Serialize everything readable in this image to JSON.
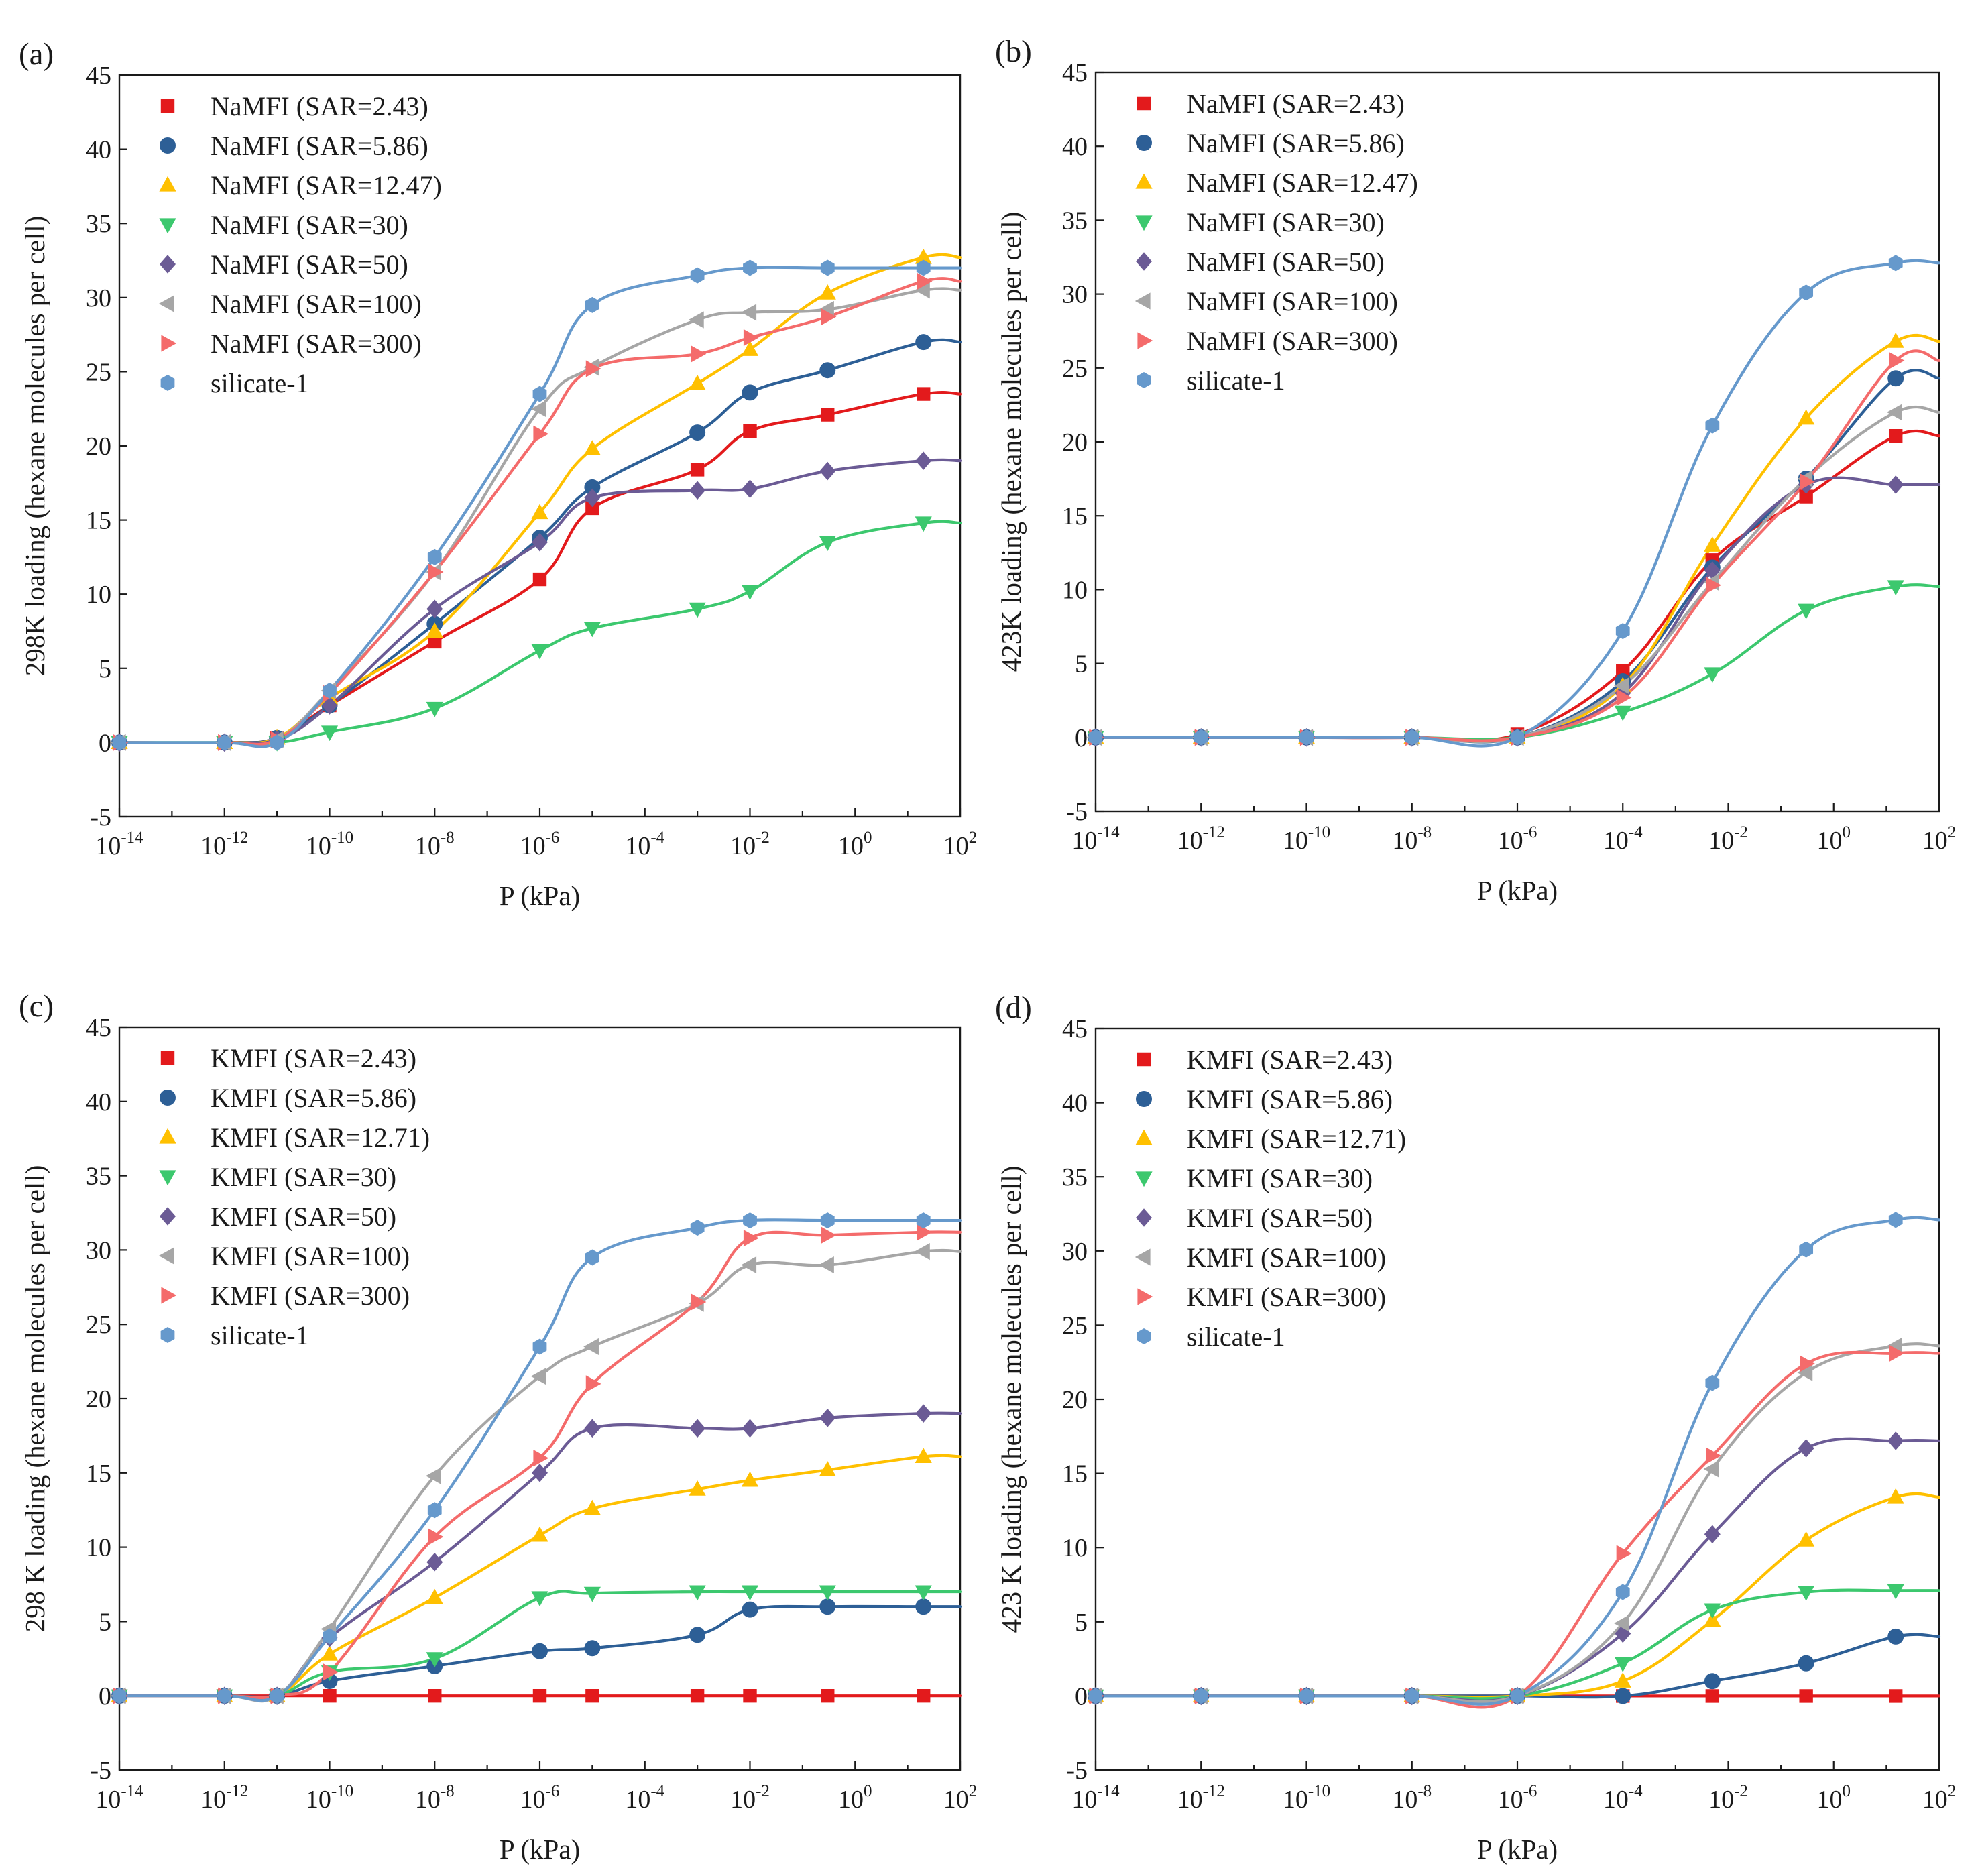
{
  "figure": {
    "x_axis_label": "P (kPa)"
  },
  "chart_data": [
    {
      "type": "scatter",
      "panel_label": "(a)",
      "ylabel": "298K loading (hexane molecules per cell)",
      "xlabel": "P (kPa)",
      "xscale": "log",
      "xlim": [
        1e-14,
        100
      ],
      "ylim": [
        -5,
        45
      ],
      "y_ticks": [
        -5,
        0,
        5,
        10,
        15,
        20,
        25,
        30,
        35,
        40,
        45
      ],
      "x_tick_exponents": [
        "-14",
        "-12",
        "-10",
        "-8",
        "-6",
        "-4",
        "-2",
        "0",
        "2"
      ],
      "x_tick_base": "10",
      "legend_position": "top-left",
      "fit_curves": true,
      "x": [
        1e-14,
        1e-12,
        1e-11,
        1e-10,
        1e-08,
        1e-06,
        1e-05,
        0.001,
        0.01,
        0.3,
        20
      ],
      "series": [
        {
          "name": "NaMFI (SAR=2.43)",
          "color": "#e31a1c",
          "marker": "square",
          "y": [
            0,
            0,
            0.3,
            2.5,
            6.8,
            11,
            15.8,
            18.4,
            21,
            22.1,
            23.5
          ]
        },
        {
          "name": "NaMFI (SAR=5.86)",
          "color": "#2d5f96",
          "marker": "circle",
          "y": [
            0,
            0,
            0.3,
            2.5,
            8,
            13.8,
            17.2,
            20.9,
            23.6,
            25.1,
            27
          ]
        },
        {
          "name": "NaMFI (SAR=12.47)",
          "color": "#ffc000",
          "marker": "triangle-up",
          "y": [
            0,
            0,
            0.3,
            3,
            7.5,
            15.5,
            19.8,
            24.2,
            26.5,
            30.3,
            32.7
          ]
        },
        {
          "name": "NaMFI (SAR=30)",
          "color": "#3cc86e",
          "marker": "triangle-down",
          "y": [
            0,
            0,
            0,
            0.7,
            2.3,
            6.2,
            7.7,
            9,
            10.2,
            13.5,
            14.8
          ]
        },
        {
          "name": "NaMFI (SAR=50)",
          "color": "#6b5b95",
          "marker": "diamond",
          "y": [
            0,
            0,
            0.2,
            2.5,
            9,
            13.5,
            16.5,
            17,
            17.1,
            18.3,
            19
          ]
        },
        {
          "name": "NaMFI (SAR=100)",
          "color": "#a6a6a6",
          "marker": "triangle-left",
          "y": [
            0,
            0,
            0.2,
            3.5,
            11.5,
            22.5,
            25.3,
            28.5,
            29,
            29.2,
            30.5
          ]
        },
        {
          "name": "NaMFI (SAR=300)",
          "color": "#f46b6b",
          "marker": "triangle-right",
          "y": [
            0,
            0,
            0.2,
            3.3,
            11.5,
            20.8,
            25.2,
            26.2,
            27.3,
            28.7,
            31.1
          ]
        },
        {
          "name": "silicate-1",
          "color": "#6699cc",
          "marker": "hexagon",
          "y": [
            0,
            0,
            0,
            3.5,
            12.5,
            23.5,
            29.5,
            31.5,
            32,
            32,
            32
          ]
        }
      ]
    },
    {
      "type": "scatter",
      "panel_label": "(b)",
      "ylabel": "423K loading (hexane molecules per cell)",
      "xlabel": "P (kPa)",
      "xscale": "log",
      "xlim": [
        1e-14,
        100
      ],
      "ylim": [
        -5,
        45
      ],
      "y_ticks": [
        -5,
        0,
        5,
        10,
        15,
        20,
        25,
        30,
        35,
        40,
        45
      ],
      "x_tick_exponents": [
        "-14",
        "-12",
        "-10",
        "-8",
        "-6",
        "-4",
        "-2",
        "0",
        "2"
      ],
      "x_tick_base": "10",
      "legend_position": "top-left",
      "fit_curves": true,
      "x": [
        1e-14,
        1e-12,
        1e-10,
        1e-08,
        1e-06,
        0.0001,
        0.005,
        0.3,
        15
      ],
      "series": [
        {
          "name": "NaMFI (SAR=2.43)",
          "color": "#e31a1c",
          "marker": "square",
          "y": [
            0,
            0,
            0,
            0,
            0.2,
            4.5,
            12,
            16.3,
            20.4
          ]
        },
        {
          "name": "NaMFI (SAR=5.86)",
          "color": "#2d5f96",
          "marker": "circle",
          "y": [
            0,
            0,
            0,
            0,
            0,
            3.8,
            11.5,
            17.5,
            24.3
          ]
        },
        {
          "name": "NaMFI (SAR=12.47)",
          "color": "#ffc000",
          "marker": "triangle-up",
          "y": [
            0,
            0,
            0,
            0,
            0,
            3.5,
            13,
            21.6,
            26.8
          ]
        },
        {
          "name": "NaMFI (SAR=30)",
          "color": "#3cc86e",
          "marker": "triangle-down",
          "y": [
            0,
            0,
            0,
            0,
            0,
            1.7,
            4.3,
            8.6,
            10.2
          ]
        },
        {
          "name": "NaMFI (SAR=50)",
          "color": "#6b5b95",
          "marker": "diamond",
          "y": [
            0,
            0,
            0,
            0,
            0,
            3,
            11.3,
            17.1,
            17.1
          ]
        },
        {
          "name": "NaMFI (SAR=100)",
          "color": "#a6a6a6",
          "marker": "triangle-left",
          "y": [
            0,
            0,
            0,
            0,
            0,
            3.5,
            10.5,
            17.5,
            22
          ]
        },
        {
          "name": "NaMFI (SAR=300)",
          "color": "#f46b6b",
          "marker": "triangle-right",
          "y": [
            0,
            0,
            0,
            0,
            0,
            2.7,
            10.3,
            17.3,
            25.5
          ]
        },
        {
          "name": "silicate-1",
          "color": "#6699cc",
          "marker": "hexagon",
          "y": [
            0,
            0,
            0,
            0,
            0,
            7.2,
            21.1,
            30.1,
            32.1
          ]
        }
      ]
    },
    {
      "type": "scatter",
      "panel_label": "(c)",
      "ylabel": "298 K loading (hexane molecules per cell)",
      "xlabel": "P (kPa)",
      "xscale": "log",
      "xlim": [
        1e-14,
        100
      ],
      "ylim": [
        -5,
        45
      ],
      "y_ticks": [
        -5,
        0,
        5,
        10,
        15,
        20,
        25,
        30,
        35,
        40,
        45
      ],
      "x_tick_exponents": [
        "-14",
        "-12",
        "-10",
        "-8",
        "-6",
        "-4",
        "-2",
        "0",
        "2"
      ],
      "x_tick_base": "10",
      "legend_position": "top-left",
      "fit_curves": true,
      "x": [
        1e-14,
        1e-12,
        1e-11,
        1e-10,
        1e-08,
        1e-06,
        1e-05,
        0.001,
        0.01,
        0.3,
        20
      ],
      "series": [
        {
          "name": "KMFI (SAR=2.43)",
          "color": "#e31a1c",
          "marker": "square",
          "y": [
            0,
            0,
            0,
            0,
            0,
            0,
            0,
            0,
            0,
            0,
            0
          ]
        },
        {
          "name": "KMFI (SAR=5.86)",
          "color": "#2d5f96",
          "marker": "circle",
          "y": [
            0,
            0,
            0,
            1,
            2,
            3,
            3.2,
            4.1,
            5.8,
            6,
            6
          ]
        },
        {
          "name": "KMFI (SAR=12.71)",
          "color": "#ffc000",
          "marker": "triangle-up",
          "y": [
            0,
            0,
            0,
            2.8,
            6.6,
            10.8,
            12.6,
            13.9,
            14.5,
            15.2,
            16.1
          ]
        },
        {
          "name": "KMFI (SAR=30)",
          "color": "#3cc86e",
          "marker": "triangle-down",
          "y": [
            0,
            0,
            0,
            1.6,
            2.5,
            6.6,
            6.9,
            7,
            7,
            7,
            7
          ]
        },
        {
          "name": "KMFI (SAR=50)",
          "color": "#6b5b95",
          "marker": "diamond",
          "y": [
            0,
            0,
            0,
            3.9,
            9,
            15,
            18,
            18,
            18,
            18.7,
            19
          ]
        },
        {
          "name": "KMFI (SAR=100)",
          "color": "#a6a6a6",
          "marker": "triangle-left",
          "y": [
            0,
            0,
            0,
            4.5,
            14.8,
            21.5,
            23.5,
            26.4,
            29,
            29,
            29.9
          ]
        },
        {
          "name": "KMFI (SAR=300)",
          "color": "#f46b6b",
          "marker": "triangle-right",
          "y": [
            0,
            0,
            0,
            1.6,
            10.7,
            16,
            21,
            26.5,
            30.8,
            31,
            31.2
          ]
        },
        {
          "name": "silicate-1",
          "color": "#6699cc",
          "marker": "hexagon",
          "y": [
            0,
            0,
            0,
            4,
            12.5,
            23.5,
            29.5,
            31.5,
            32,
            32,
            32
          ]
        }
      ]
    },
    {
      "type": "scatter",
      "panel_label": "(d)",
      "ylabel": "423 K loading (hexane molecules per cell)",
      "xlabel": "P (kPa)",
      "xscale": "log",
      "xlim": [
        1e-14,
        100
      ],
      "ylim": [
        -5,
        45
      ],
      "y_ticks": [
        -5,
        0,
        5,
        10,
        15,
        20,
        25,
        30,
        35,
        40,
        45
      ],
      "x_tick_exponents": [
        "-14",
        "-12",
        "-10",
        "-8",
        "-6",
        "-4",
        "-2",
        "0",
        "2"
      ],
      "x_tick_base": "10",
      "legend_position": "top-left",
      "fit_curves": true,
      "x": [
        1e-14,
        1e-12,
        1e-10,
        1e-08,
        1e-06,
        0.0001,
        0.005,
        0.3,
        15
      ],
      "series": [
        {
          "name": "KMFI (SAR=2.43)",
          "color": "#e31a1c",
          "marker": "square",
          "y": [
            0,
            0,
            0,
            0,
            0,
            0,
            0,
            0,
            0
          ]
        },
        {
          "name": "KMFI (SAR=5.86)",
          "color": "#2d5f96",
          "marker": "circle",
          "y": [
            0,
            0,
            0,
            0,
            0,
            0,
            1,
            2.2,
            4
          ]
        },
        {
          "name": "KMFI (SAR=12.71)",
          "color": "#ffc000",
          "marker": "triangle-up",
          "y": [
            0,
            0,
            0,
            0,
            0,
            1,
            5.1,
            10.5,
            13.4
          ]
        },
        {
          "name": "KMFI (SAR=30)",
          "color": "#3cc86e",
          "marker": "triangle-down",
          "y": [
            0,
            0,
            0,
            0,
            0,
            2.2,
            5.8,
            7,
            7.1
          ]
        },
        {
          "name": "KMFI (SAR=50)",
          "color": "#6b5b95",
          "marker": "diamond",
          "y": [
            0,
            0,
            0,
            0,
            0,
            4.2,
            10.9,
            16.7,
            17.2
          ]
        },
        {
          "name": "KMFI (SAR=100)",
          "color": "#a6a6a6",
          "marker": "triangle-left",
          "y": [
            0,
            0,
            0,
            0,
            0,
            4.9,
            15.3,
            21.8,
            23.6
          ]
        },
        {
          "name": "KMFI (SAR=300)",
          "color": "#f46b6b",
          "marker": "triangle-right",
          "y": [
            0,
            0,
            0,
            0,
            0,
            9.6,
            16.2,
            22.4,
            23.1
          ]
        },
        {
          "name": "silicate-1",
          "color": "#6699cc",
          "marker": "hexagon",
          "y": [
            0,
            0,
            0,
            0,
            0,
            7,
            21.1,
            30.1,
            32.1
          ]
        }
      ]
    }
  ]
}
